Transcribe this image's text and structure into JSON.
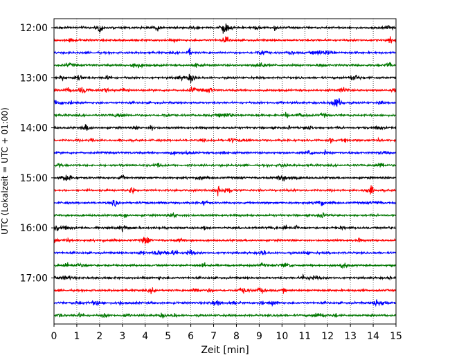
{
  "chart_data": {
    "type": "line",
    "subtype": "helicorder",
    "title": "",
    "xlabel": "Zeit  [min]",
    "ylabel": "UTC (Lokalzeit = UTC + 01:00)",
    "xlim": [
      0,
      15
    ],
    "x_ticks": [
      "0",
      "1",
      "2",
      "3",
      "4",
      "5",
      "6",
      "7",
      "8",
      "9",
      "10",
      "11",
      "12",
      "13",
      "14",
      "15"
    ],
    "y_ticks": [
      "12:00",
      "13:00",
      "14:00",
      "15:00",
      "16:00",
      "17:00"
    ],
    "grid": "vertical dotted",
    "trace_colors": [
      "#000000",
      "#ff0000",
      "#0000ff",
      "#007700"
    ],
    "rows": [
      {
        "start": "12:00",
        "color": "#000000"
      },
      {
        "start": "12:15",
        "color": "#ff0000"
      },
      {
        "start": "12:30",
        "color": "#0000ff"
      },
      {
        "start": "12:45",
        "color": "#007700"
      },
      {
        "start": "13:00",
        "color": "#000000"
      },
      {
        "start": "13:15",
        "color": "#ff0000"
      },
      {
        "start": "13:30",
        "color": "#0000ff"
      },
      {
        "start": "13:45",
        "color": "#007700"
      },
      {
        "start": "14:00",
        "color": "#000000"
      },
      {
        "start": "14:15",
        "color": "#ff0000"
      },
      {
        "start": "14:30",
        "color": "#0000ff"
      },
      {
        "start": "14:45",
        "color": "#007700"
      },
      {
        "start": "15:00",
        "color": "#000000"
      },
      {
        "start": "15:15",
        "color": "#ff0000"
      },
      {
        "start": "15:30",
        "color": "#0000ff"
      },
      {
        "start": "15:45",
        "color": "#007700"
      },
      {
        "start": "16:00",
        "color": "#000000"
      },
      {
        "start": "16:15",
        "color": "#ff0000"
      },
      {
        "start": "16:30",
        "color": "#0000ff"
      },
      {
        "start": "16:45",
        "color": "#007700"
      },
      {
        "start": "17:00",
        "color": "#000000"
      },
      {
        "start": "17:15",
        "color": "#ff0000"
      },
      {
        "start": "17:30",
        "color": "#0000ff"
      },
      {
        "start": "17:45",
        "color": "#007700"
      }
    ]
  }
}
